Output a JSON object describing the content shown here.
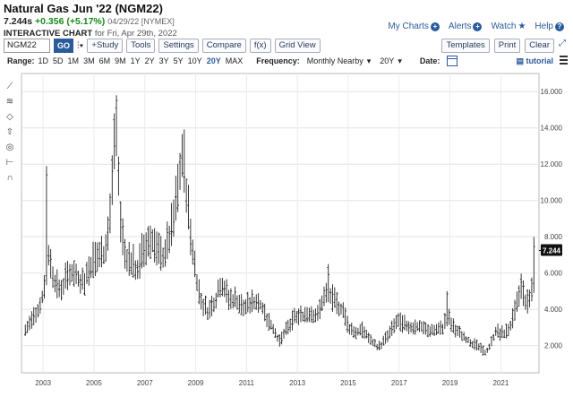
{
  "header": {
    "title": "Natural Gas Jun '22 (NGM22)",
    "last": "7.244s",
    "change": "+0.356 (+5.17%)",
    "meta": "04/29/22 [NYMEX]",
    "sub_bold": "INTERACTIVE CHART",
    "sub_text": "for Fri, Apr 29th, 2022"
  },
  "topright": {
    "mycharts": "My Charts",
    "alerts": "Alerts",
    "watch": "Watch",
    "help": "Help"
  },
  "toolbar": {
    "symbol": "NGM22",
    "go": "GO",
    "study": "+Study",
    "tools": "Tools",
    "settings": "Settings",
    "compare": "Compare",
    "fx": "f(x)",
    "grid": "Grid View",
    "templates": "Templates",
    "print": "Print",
    "clear": "Clear"
  },
  "rangebar": {
    "range_label": "Range:",
    "ranges": [
      "1D",
      "5D",
      "1M",
      "3M",
      "6M",
      "9M",
      "1Y",
      "2Y",
      "3Y",
      "5Y",
      "10Y",
      "20Y",
      "MAX"
    ],
    "selected": "20Y",
    "freq_label": "Frequency:",
    "freq_value": "Monthly Nearby",
    "period_value": "20Y",
    "date_label": "Date:",
    "tutorial": "tutorial"
  },
  "colors": {
    "accent": "#2a5b9b",
    "up": "#1a8a1a",
    "bars": "#222222"
  },
  "chart_data": {
    "type": "bar",
    "style": "ohlc",
    "frequency": "Monthly Nearby",
    "x_tick_labels": [
      "2003",
      "2005",
      "2007",
      "2009",
      "2011",
      "2013",
      "2015",
      "2017",
      "2019",
      "2021"
    ],
    "y_tick_labels": [
      "2.000",
      "4.000",
      "6.000",
      "8.000",
      "10.000",
      "12.000",
      "14.000",
      "16.000"
    ],
    "ylim": [
      0.5,
      17
    ],
    "last_price_label": "7.244",
    "anchors": [
      [
        2002.3,
        2.8
      ],
      [
        2002.6,
        3.5
      ],
      [
        2002.9,
        4.2
      ],
      [
        2003.1,
        5.5
      ],
      [
        2003.2,
        7.0
      ],
      [
        2003.4,
        5.8
      ],
      [
        2003.6,
        5.0
      ],
      [
        2003.8,
        5.2
      ],
      [
        2004.0,
        6.0
      ],
      [
        2004.3,
        5.8
      ],
      [
        2004.6,
        5.4
      ],
      [
        2004.9,
        6.5
      ],
      [
        2005.1,
        6.8
      ],
      [
        2005.4,
        7.0
      ],
      [
        2005.6,
        8.5
      ],
      [
        2005.8,
        12.5
      ],
      [
        2005.9,
        13.8
      ],
      [
        2006.0,
        9.5
      ],
      [
        2006.2,
        7.0
      ],
      [
        2006.5,
        6.5
      ],
      [
        2006.7,
        6.0
      ],
      [
        2006.9,
        7.0
      ],
      [
        2007.1,
        7.6
      ],
      [
        2007.3,
        7.8
      ],
      [
        2007.5,
        7.0
      ],
      [
        2007.7,
        6.8
      ],
      [
        2007.9,
        7.5
      ],
      [
        2008.1,
        8.5
      ],
      [
        2008.3,
        10.5
      ],
      [
        2008.5,
        12.5
      ],
      [
        2008.6,
        11.0
      ],
      [
        2008.8,
        8.0
      ],
      [
        2009.0,
        6.0
      ],
      [
        2009.2,
        4.4
      ],
      [
        2009.5,
        3.8
      ],
      [
        2009.8,
        4.6
      ],
      [
        2010.0,
        5.5
      ],
      [
        2010.3,
        4.5
      ],
      [
        2010.6,
        4.5
      ],
      [
        2010.9,
        4.0
      ],
      [
        2011.2,
        4.3
      ],
      [
        2011.5,
        4.4
      ],
      [
        2011.8,
        3.5
      ],
      [
        2012.1,
        2.8
      ],
      [
        2012.3,
        2.2
      ],
      [
        2012.6,
        2.9
      ],
      [
        2012.9,
        3.5
      ],
      [
        2013.2,
        3.6
      ],
      [
        2013.5,
        3.8
      ],
      [
        2013.8,
        3.6
      ],
      [
        2014.0,
        4.5
      ],
      [
        2014.2,
        4.8
      ],
      [
        2014.5,
        4.3
      ],
      [
        2014.8,
        3.9
      ],
      [
        2015.0,
        3.0
      ],
      [
        2015.3,
        2.7
      ],
      [
        2015.6,
        2.8
      ],
      [
        2015.9,
        2.2
      ],
      [
        2016.2,
        1.9
      ],
      [
        2016.4,
        2.2
      ],
      [
        2016.7,
        2.8
      ],
      [
        2016.9,
        3.3
      ],
      [
        2017.2,
        3.1
      ],
      [
        2017.5,
        3.0
      ],
      [
        2017.8,
        3.0
      ],
      [
        2018.1,
        2.8
      ],
      [
        2018.4,
        2.8
      ],
      [
        2018.7,
        2.9
      ],
      [
        2018.9,
        3.6
      ],
      [
        2019.1,
        3.0
      ],
      [
        2019.4,
        2.6
      ],
      [
        2019.7,
        2.3
      ],
      [
        2020.0,
        2.0
      ],
      [
        2020.2,
        1.8
      ],
      [
        2020.4,
        1.6
      ],
      [
        2020.6,
        2.0
      ],
      [
        2020.8,
        2.8
      ],
      [
        2021.0,
        2.6
      ],
      [
        2021.2,
        2.7
      ],
      [
        2021.4,
        3.1
      ],
      [
        2021.6,
        4.0
      ],
      [
        2021.8,
        5.2
      ],
      [
        2021.95,
        4.5
      ],
      [
        2022.05,
        4.3
      ],
      [
        2022.15,
        4.6
      ],
      [
        2022.3,
        5.7
      ]
    ],
    "spikes": [
      [
        2003.1,
        11.9
      ],
      [
        2005.8,
        14.8
      ],
      [
        2005.9,
        15.8
      ],
      [
        2008.5,
        13.6
      ],
      [
        2014.2,
        6.5
      ],
      [
        2018.9,
        5.0
      ],
      [
        2022.33,
        7.99
      ]
    ]
  }
}
